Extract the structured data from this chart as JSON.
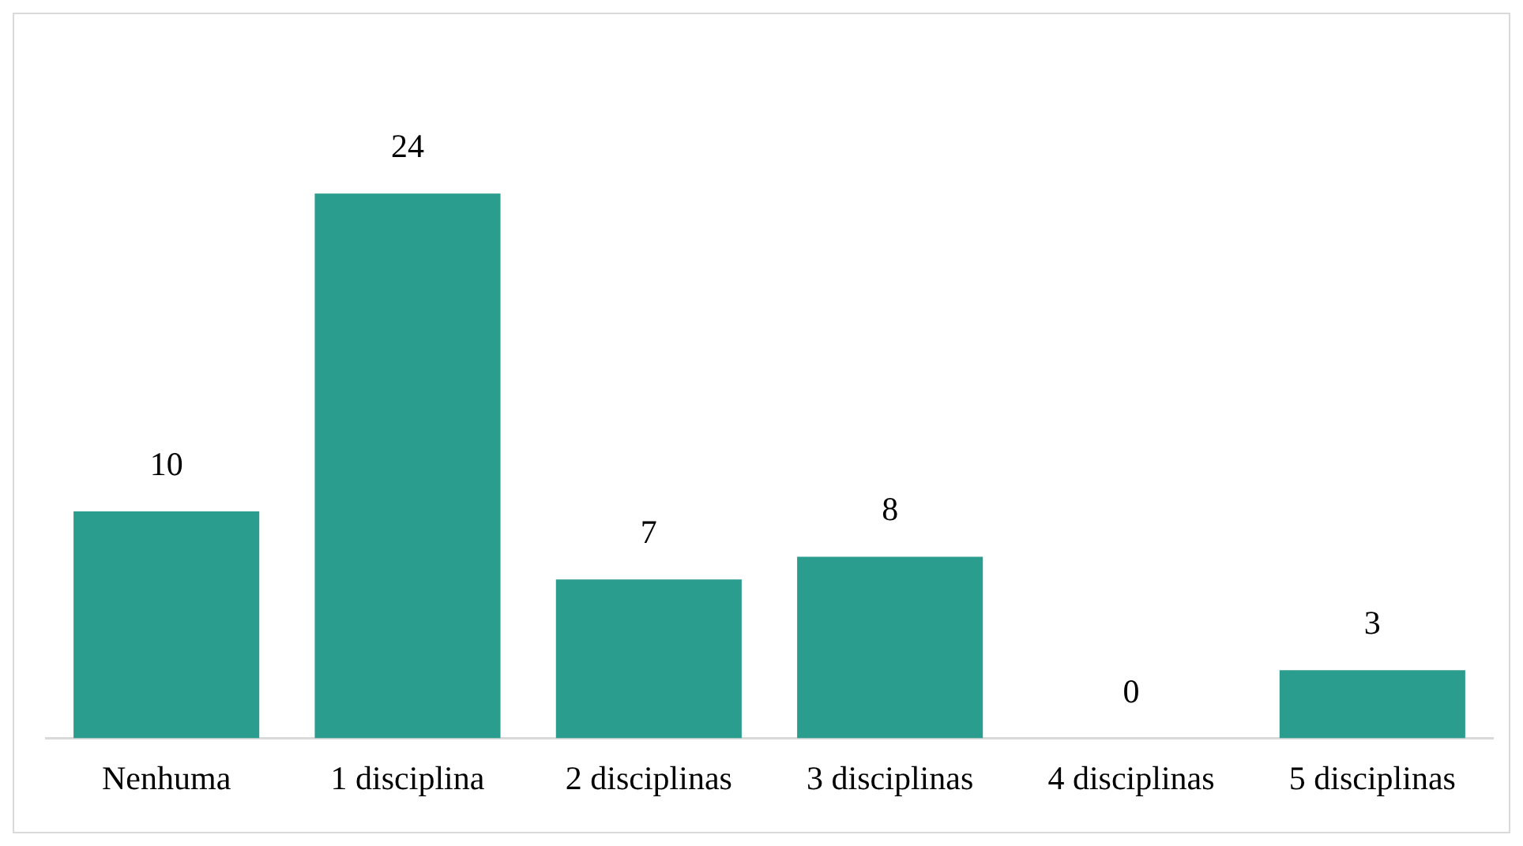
{
  "chart_data": {
    "type": "bar",
    "categories": [
      "Nenhuma",
      "1 disciplina",
      "2 disciplinas",
      "3 disciplinas",
      "4 disciplinas",
      "5 disciplinas"
    ],
    "values": [
      10,
      24,
      7,
      8,
      0,
      3
    ],
    "color": "#2b9d8f",
    "data_labels": true,
    "grid": false,
    "legend": false
  }
}
